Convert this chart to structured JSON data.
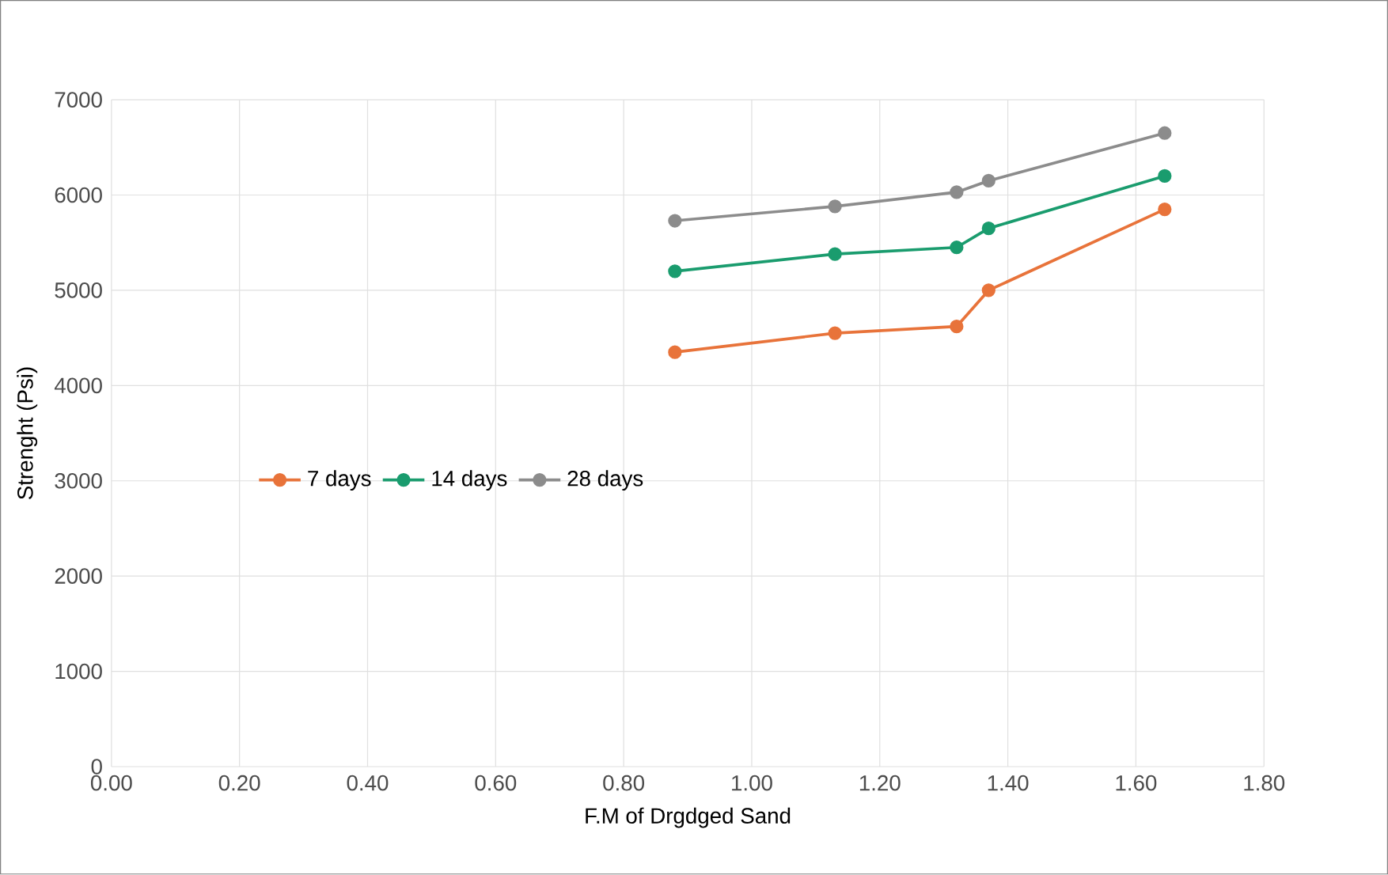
{
  "chart_data": {
    "type": "line",
    "xlabel": "F.M of Drgdged Sand",
    "ylabel": "Strenght (Psi)",
    "x": [
      0.88,
      1.13,
      1.32,
      1.37,
      1.645
    ],
    "series": [
      {
        "name": "7 days",
        "color": "#e8733a",
        "values": [
          4350,
          4550,
          4620,
          5000,
          5850
        ]
      },
      {
        "name": "14 days",
        "color": "#1a9c6e",
        "values": [
          5200,
          5380,
          5450,
          5650,
          6200
        ]
      },
      {
        "name": "28 days",
        "color": "#8c8c8c",
        "values": [
          5730,
          5880,
          6030,
          6150,
          6650
        ]
      }
    ],
    "xlim": [
      0,
      1.8
    ],
    "xticks": [
      {
        "value": 0,
        "label": "0.00"
      },
      {
        "value": 0.2,
        "label": "0.20"
      },
      {
        "value": 0.4,
        "label": "0.40"
      },
      {
        "value": 0.6,
        "label": "0.60"
      },
      {
        "value": 0.8,
        "label": "0.80"
      },
      {
        "value": 1.0,
        "label": "1.00"
      },
      {
        "value": 1.2,
        "label": "1.20"
      },
      {
        "value": 1.4,
        "label": "1.40"
      },
      {
        "value": 1.6,
        "label": "1.60"
      },
      {
        "value": 1.8,
        "label": "1.80"
      }
    ],
    "ylim": [
      0,
      7000
    ],
    "yticks": [
      0,
      1000,
      2000,
      3000,
      4000,
      5000,
      6000,
      7000
    ],
    "grid": true,
    "legend": "left",
    "marker": "circle",
    "line_style": "solid"
  }
}
